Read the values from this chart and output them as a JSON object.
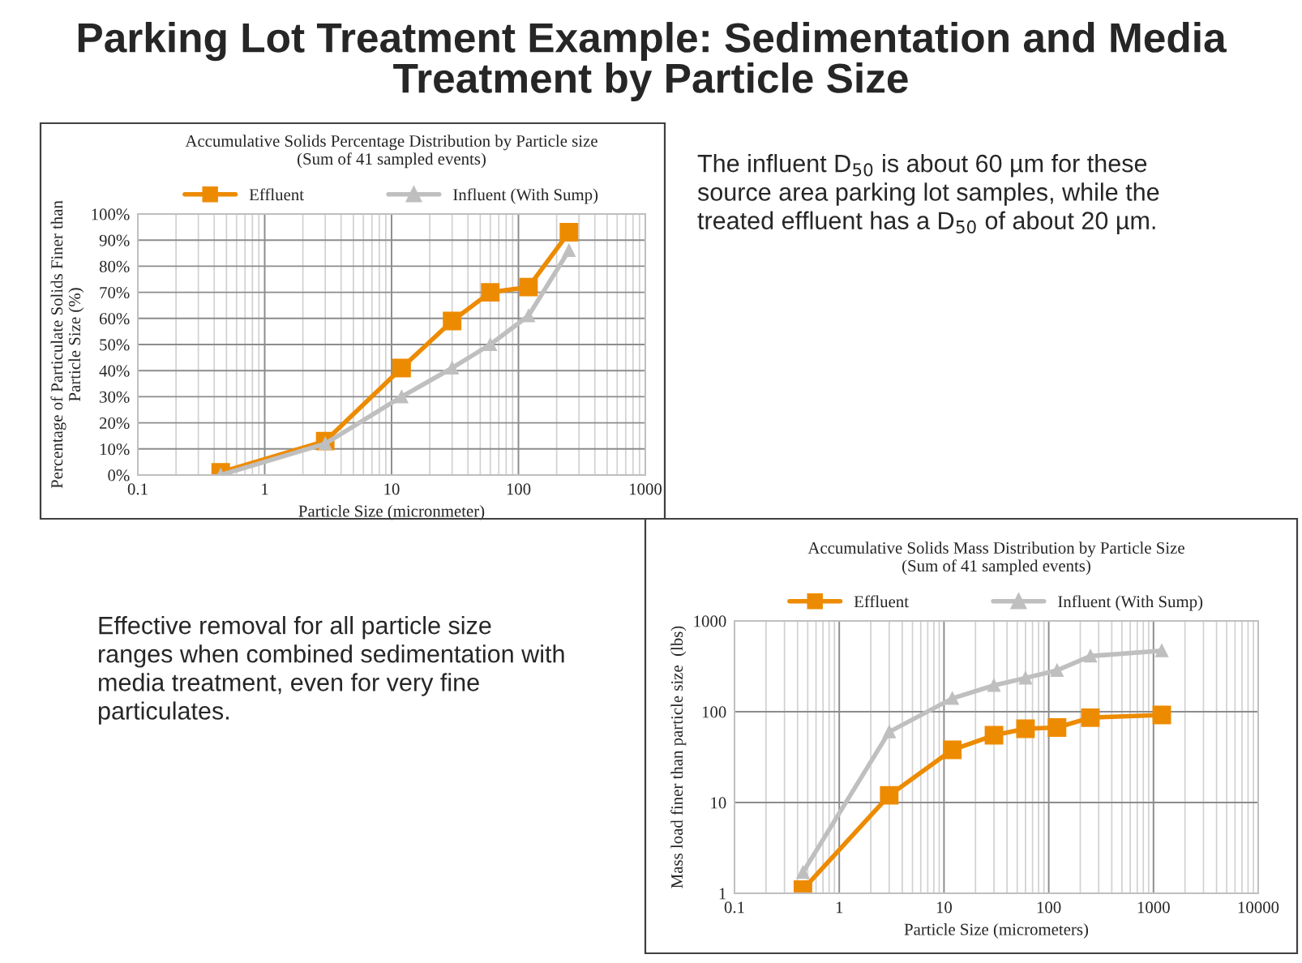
{
  "chart_data": [
    {
      "type": "line",
      "title": "Accumulative Solids Percentage Distribution by Particle size\n(Sum of 41 sampled events)",
      "xlabel": "Particle Size (micronmeter)",
      "ylabel": "Percentage of Particulate Solids Finer than\nParticle Size (%)",
      "log": "x",
      "xlim": [
        0.1,
        1000
      ],
      "xticks": [
        0.1,
        1,
        10,
        100,
        1000
      ],
      "ylim": [
        0,
        100
      ],
      "yticks": [
        {
          "value": 0,
          "label": "0%"
        },
        {
          "value": 10,
          "label": "10%"
        },
        {
          "value": 20,
          "label": "20%"
        },
        {
          "value": 30,
          "label": "30%"
        },
        {
          "value": 40,
          "label": "40%"
        },
        {
          "value": 50,
          "label": "50%"
        },
        {
          "value": 60,
          "label": "60%"
        },
        {
          "value": 70,
          "label": "70%"
        },
        {
          "value": 80,
          "label": "80%"
        },
        {
          "value": 90,
          "label": "90%"
        },
        {
          "value": 100,
          "label": "100%"
        }
      ],
      "grid": true,
      "legend": "top",
      "x": [
        0.45,
        3,
        12,
        30,
        60,
        120,
        250
      ],
      "series": [
        {
          "name": "Effluent",
          "color": "#ed8b00",
          "marker": "square",
          "values": [
            1,
            13,
            41,
            59,
            70,
            72,
            93
          ]
        },
        {
          "name": "Influent (With Sump)",
          "color": "#bfbfbf",
          "marker": "triangle",
          "values": [
            0,
            12,
            30,
            41,
            50,
            61,
            86
          ]
        }
      ]
    },
    {
      "type": "line",
      "title": "Accumulative Solids Mass Distribution by Particle Size\n(Sum of 41 sampled events)",
      "xlabel": "Particle Size (micrometers)",
      "ylabel": "Mass load finer than particle size  (lbs)",
      "log": "xy",
      "xlim": [
        0.1,
        10000
      ],
      "xticks": [
        0.1,
        1,
        10,
        100,
        1000,
        10000
      ],
      "ylim": [
        1,
        1000
      ],
      "yticks": [
        1,
        10,
        100,
        1000
      ],
      "grid": true,
      "legend": "top",
      "x": [
        0.45,
        3,
        12,
        30,
        60,
        120,
        250,
        1200
      ],
      "series": [
        {
          "name": "Effluent",
          "color": "#ed8b00",
          "marker": "square",
          "values": [
            1.1,
            12,
            38,
            55,
            65,
            67,
            86,
            92
          ]
        },
        {
          "name": "Influent (With Sump)",
          "color": "#bfbfbf",
          "marker": "triangle",
          "values": [
            1.7,
            60,
            140,
            195,
            235,
            285,
            410,
            470
          ]
        }
      ]
    },
    {
      "type": "other",
      "title": "Parking Lot Treatment Example: Sedimentation and Media Treatment by Particle Size",
      "annotations": [
        "The influent D$_{50}$ is about 60 µm for these source area parking lot samples, while the treated effluent has a D$_{50}$ of about 20 µm.",
        "Effective removal for all particle size ranges when combined sedimentation with media treatment, even for very fine particulates."
      ]
    }
  ]
}
